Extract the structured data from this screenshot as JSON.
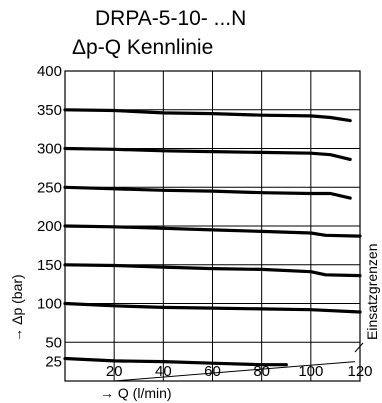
{
  "chart_data": {
    "type": "line",
    "title": "DRPA-5-10- ...N",
    "subtitle": "Δp-Q Kennlinie",
    "xlabel": "→ Q (l/min)",
    "ylabel": "→ Δp (bar)",
    "annotation": "Einsatzgrenzen",
    "xlim": [
      0,
      120
    ],
    "ylim": [
      0,
      400
    ],
    "x_ticks": [
      "20",
      "40",
      "60",
      "80",
      "100",
      "120"
    ],
    "y_ticks": [
      "25",
      "50",
      "100",
      "150",
      "200",
      "250",
      "300",
      "350",
      "400"
    ],
    "grid": true,
    "series": [
      {
        "points": [
          [
            0,
            350
          ],
          [
            20,
            349
          ],
          [
            40,
            346
          ],
          [
            60,
            345
          ],
          [
            80,
            343
          ],
          [
            100,
            342
          ],
          [
            108,
            340
          ],
          [
            116,
            336
          ]
        ]
      },
      {
        "points": [
          [
            0,
            300
          ],
          [
            20,
            299
          ],
          [
            40,
            297
          ],
          [
            60,
            296
          ],
          [
            80,
            295
          ],
          [
            100,
            294
          ],
          [
            108,
            292
          ],
          [
            116,
            286
          ]
        ]
      },
      {
        "points": [
          [
            0,
            250
          ],
          [
            20,
            248
          ],
          [
            40,
            246
          ],
          [
            60,
            245
          ],
          [
            80,
            243
          ],
          [
            100,
            242
          ],
          [
            108,
            242
          ],
          [
            116,
            236
          ]
        ]
      },
      {
        "points": [
          [
            0,
            200
          ],
          [
            20,
            199
          ],
          [
            40,
            197
          ],
          [
            60,
            195
          ],
          [
            80,
            193
          ],
          [
            100,
            191
          ],
          [
            106,
            188
          ],
          [
            120,
            187
          ]
        ]
      },
      {
        "points": [
          [
            0,
            150
          ],
          [
            20,
            149
          ],
          [
            40,
            147
          ],
          [
            60,
            145
          ],
          [
            80,
            144
          ],
          [
            100,
            141
          ],
          [
            106,
            137
          ],
          [
            120,
            136
          ]
        ]
      },
      {
        "points": [
          [
            0,
            100
          ],
          [
            20,
            97
          ],
          [
            40,
            95
          ],
          [
            60,
            94
          ],
          [
            80,
            93
          ],
          [
            100,
            92
          ],
          [
            120,
            89
          ]
        ]
      },
      {
        "points": [
          [
            0,
            29
          ],
          [
            20,
            26
          ],
          [
            40,
            25
          ],
          [
            60,
            23
          ],
          [
            80,
            21
          ],
          [
            90,
            21
          ]
        ]
      }
    ],
    "limit_line": [
      [
        20,
        0
      ],
      [
        118,
        25
      ]
    ]
  }
}
